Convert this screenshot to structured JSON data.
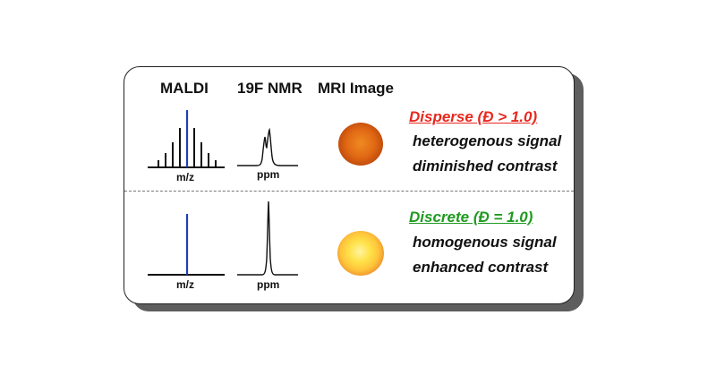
{
  "headers": {
    "maldi": "MALDI",
    "nmr": "19F NMR",
    "mri": "MRI Image"
  },
  "disperse": {
    "title": "Disperse (Đ > 1.0)",
    "line1": "heterogenous signal",
    "line2": "diminished contrast",
    "maldi_xlabel": "m/z",
    "nmr_xlabel": "ppm",
    "title_color": "#e8281e"
  },
  "discrete": {
    "title": "Discrete (Đ = 1.0)",
    "line1": "homogenous signal",
    "line2": "enhanced contrast",
    "maldi_xlabel": "m/z",
    "nmr_xlabel": "ppm",
    "title_color": "#1f9a1f"
  },
  "colors": {
    "blue_peak": "#1d3fb8",
    "black_peak": "#111111",
    "mri_dark": "#b8430a",
    "mri_bright": "#ffe24a"
  }
}
